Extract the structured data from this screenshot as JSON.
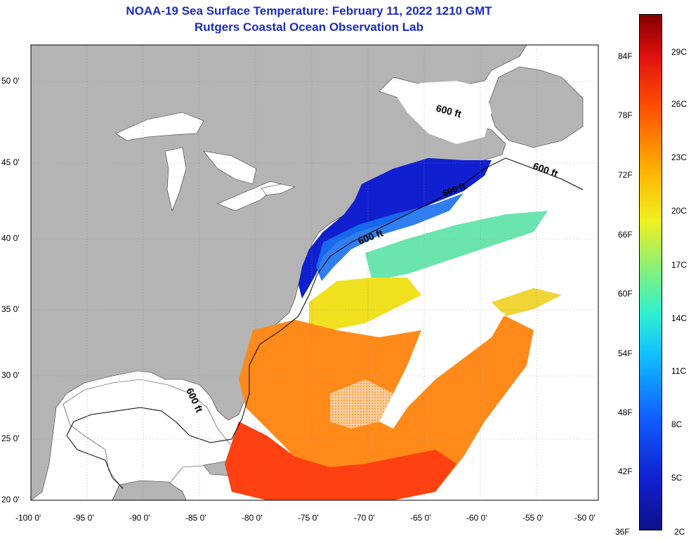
{
  "title": "NOAA-19 Sea Surface Temperature:  February 11, 2022 1210 GMT",
  "subtitle": "Rutgers Coastal Ocean Observation Lab",
  "lat_ticks": [
    "50 0'",
    "45 0'",
    "40 0'",
    "35 0'",
    "30 0'",
    "25 0'",
    "20 0'"
  ],
  "lon_ticks": [
    "-100 0'",
    "-95 0'",
    "-90 0'",
    "-85 0'",
    "-80 0'",
    "-75 0'",
    "-70 0'",
    "-65 0'",
    "-60 0'",
    "-55 0'",
    "-50 0'"
  ],
  "contour_label": "600 ft",
  "colorbar": {
    "fahrenheit": [
      "84F",
      "78F",
      "72F",
      "66F",
      "60F",
      "54F",
      "48F",
      "42F",
      "36F"
    ],
    "celsius": [
      "29C",
      "26C",
      "23C",
      "20C",
      "17C",
      "14C",
      "11C",
      "8C",
      "5C",
      "2C"
    ]
  },
  "colors": {
    "land": "#b4b4b4",
    "title": "#1a2cc4",
    "cold": "#1020d0",
    "warm": "#ff6a00"
  }
}
